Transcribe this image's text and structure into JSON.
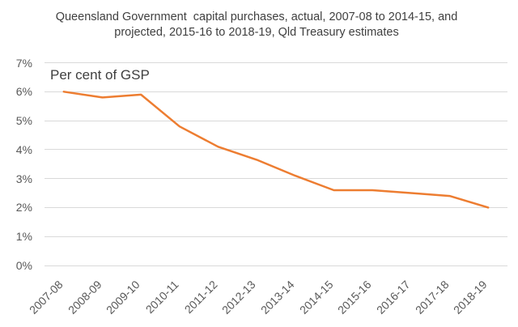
{
  "header": {
    "title_line1": "Queensland Government  capital purchases, actual, 2007-08 to 2014-15, and",
    "title_line2": "projected, 2015-16 to 2018-19, Qld Treasury estimates"
  },
  "chart_data": {
    "type": "line",
    "title": "Queensland Government capital purchases, actual, 2007-08 to 2014-15, and projected, 2015-16 to 2018-19, Qld Treasury estimates",
    "inner_axis_label": "Per cent of GSP",
    "categories": [
      "2007-08",
      "2008-09",
      "2009-10",
      "2010-11",
      "2011-12",
      "2012-13",
      "2013-14",
      "2014-15",
      "2015-16",
      "2016-17",
      "2017-18",
      "2018-19"
    ],
    "values": [
      6.0,
      5.8,
      5.9,
      4.8,
      4.1,
      3.65,
      3.1,
      2.6,
      2.6,
      2.5,
      2.4,
      2.0
    ],
    "ylabel": "Per cent of GSP",
    "xlabel": "",
    "ylim": [
      0,
      7
    ],
    "ytick_labels": [
      "0%",
      "1%",
      "2%",
      "3%",
      "4%",
      "5%",
      "6%",
      "7%"
    ],
    "grid": "horizontal",
    "legend": "none",
    "line_color": "#ED7D31",
    "grid_color": "#D9D9D9",
    "title_color": "#3F3F3F",
    "axis_text_color": "#595959"
  }
}
